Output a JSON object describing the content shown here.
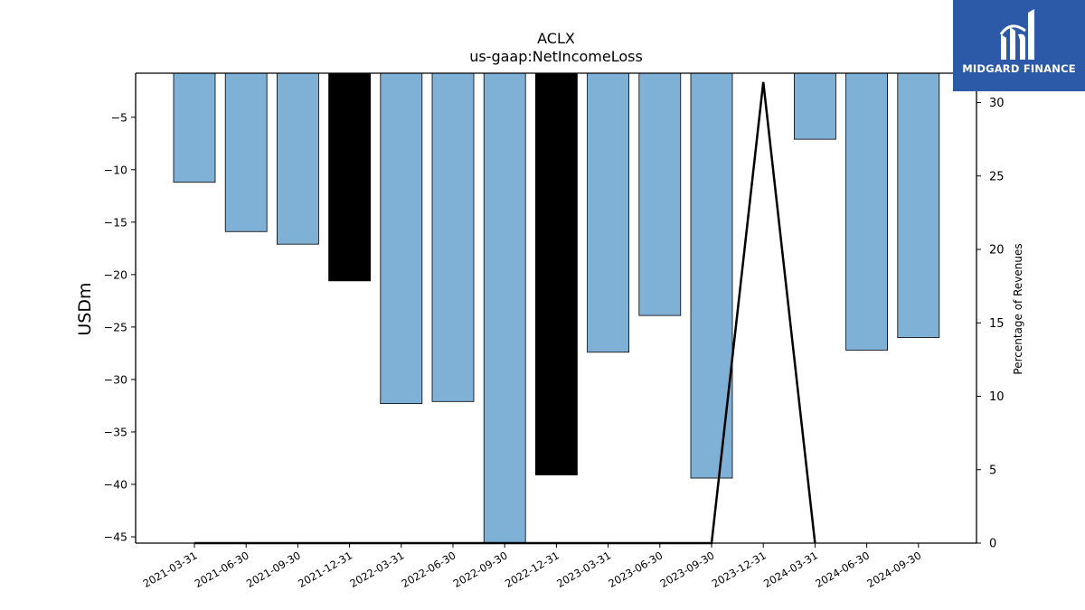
{
  "chart_data": {
    "type": "bar",
    "title": "ACLX",
    "subtitle": "us-gaap:NetIncomeLoss",
    "ylabel": "USDm",
    "y2label": "Percentage of Revenues",
    "categories": [
      "2021-03-31",
      "2021-06-30",
      "2021-09-30",
      "2021-12-31",
      "2022-03-31",
      "2022-06-30",
      "2022-09-30",
      "2022-12-31",
      "2023-03-31",
      "2023-06-30",
      "2023-09-30",
      "2023-12-31",
      "2024-03-31",
      "2024-06-30",
      "2024-09-30"
    ],
    "values": [
      -11.2,
      -15.9,
      -17.1,
      -20.6,
      -32.3,
      -32.1,
      -45.6,
      -39.1,
      -27.4,
      -23.9,
      -39.4,
      null,
      -7.1,
      -27.2,
      -26.0
    ],
    "bar_colors": [
      "#7fb0d5",
      "#7fb0d5",
      "#7fb0d5",
      "#000000",
      "#7fb0d5",
      "#7fb0d5",
      "#7fb0d5",
      "#000000",
      "#7fb0d5",
      "#7fb0d5",
      "#7fb0d5",
      "#7fb0d5",
      "#7fb0d5",
      "#7fb0d5",
      "#7fb0d5"
    ],
    "ylim": [
      -45.6,
      -0.8
    ],
    "yticks": [
      -5,
      -10,
      -15,
      -20,
      -25,
      -30,
      -35,
      -40,
      -45
    ],
    "y2lim": [
      0,
      32.0
    ],
    "y2ticks": [
      0,
      5,
      10,
      15,
      20,
      25,
      30
    ],
    "line_series": {
      "name": "Percentage of Revenues",
      "x": [
        "2021-03-31",
        "2021-06-30",
        "2021-09-30",
        "2021-12-31",
        "2022-03-31",
        "2022-06-30",
        "2022-09-30",
        "2022-12-31",
        "2023-09-30",
        "2023-12-31",
        "2024-03-31"
      ],
      "values": [
        0,
        0,
        0,
        0,
        0,
        0,
        0,
        0,
        0,
        31.4,
        0
      ]
    },
    "grid": false,
    "legend": "none"
  },
  "logo": {
    "text": "MIDGARD FINANCE"
  }
}
